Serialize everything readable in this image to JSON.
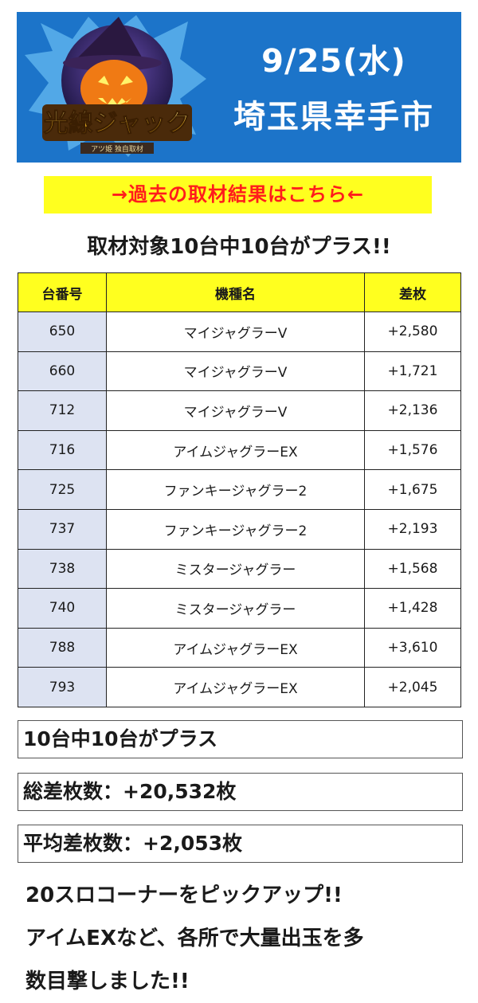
{
  "banner": {
    "logo_text": "光線ジャック",
    "logo_subtext": "アツ姫 独自取材",
    "date": "9/25(水)",
    "place": "埼玉県幸手市"
  },
  "past_link": "→過去の取材結果はこちら←",
  "headline": "取材対象10台中10台がプラス!!",
  "table": {
    "headers": [
      "台番号",
      "機種名",
      "差枚"
    ],
    "rows": [
      {
        "no": "650",
        "machine": "マイジャグラーV",
        "diff": "+2,580"
      },
      {
        "no": "660",
        "machine": "マイジャグラーV",
        "diff": "+1,721"
      },
      {
        "no": "712",
        "machine": "マイジャグラーV",
        "diff": "+2,136"
      },
      {
        "no": "716",
        "machine": "アイムジャグラーEX",
        "diff": "+1,576"
      },
      {
        "no": "725",
        "machine": "ファンキージャグラー2",
        "diff": "+1,675"
      },
      {
        "no": "737",
        "machine": "ファンキージャグラー2",
        "diff": "+2,193"
      },
      {
        "no": "738",
        "machine": "ミスタージャグラー",
        "diff": "+1,568"
      },
      {
        "no": "740",
        "machine": "ミスタージャグラー",
        "diff": "+1,428"
      },
      {
        "no": "788",
        "machine": "アイムジャグラーEX",
        "diff": "+3,610"
      },
      {
        "no": "793",
        "machine": "アイムジャグラーEX",
        "diff": "+2,045"
      }
    ]
  },
  "summary": {
    "plus_count": "10台中10台がプラス",
    "total": "総差枚数：+20,532枚",
    "average": "平均差枚数：+2,053枚"
  },
  "comment": {
    "line1": "20スロコーナーをピックアップ!!",
    "line2": "アイムEXなど、各所で大量出玉を多",
    "line3": "数目撃しました!!"
  }
}
